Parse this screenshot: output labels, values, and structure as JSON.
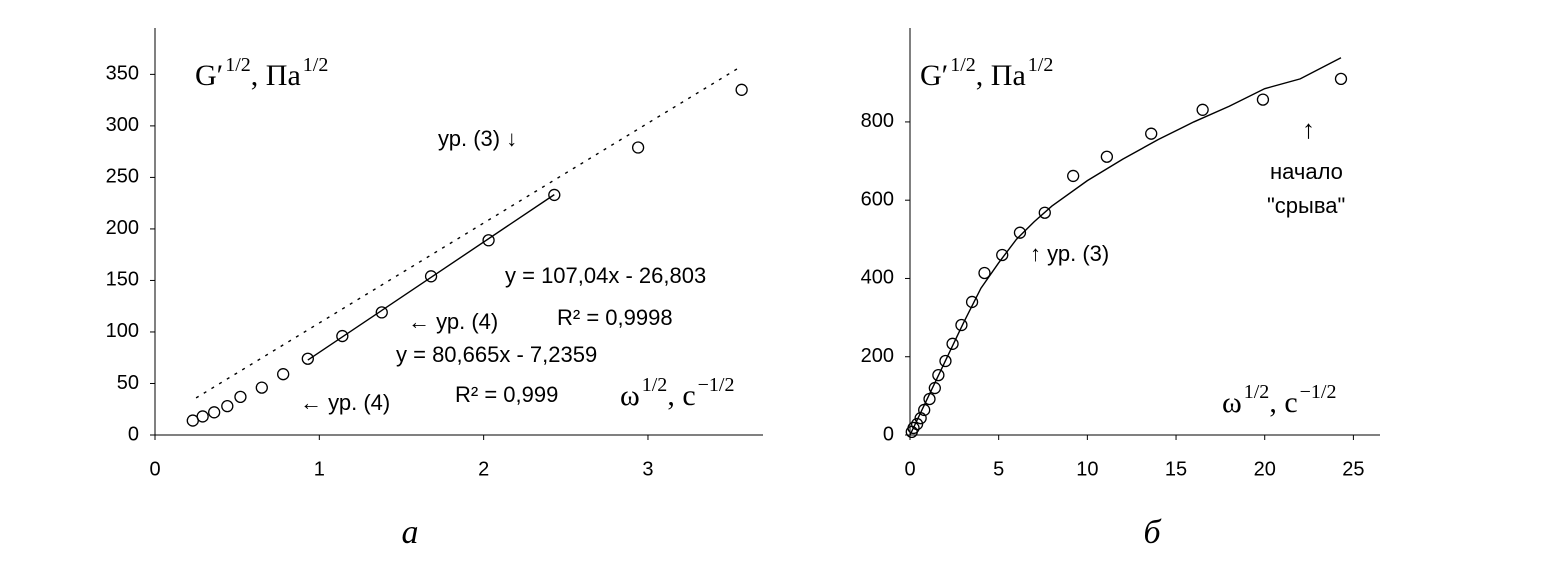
{
  "chart_data": [
    {
      "type": "scatter",
      "panel": "а",
      "y_label": [
        "G′",
        "1/2",
        ", Па",
        "1/2"
      ],
      "x_label": [
        "ω",
        "1/2",
        ", с",
        "−1/2"
      ],
      "xlim": [
        0,
        3.7
      ],
      "xticks": [
        0,
        1,
        2,
        3
      ],
      "ylim": [
        0,
        395
      ],
      "yticks": [
        0,
        50,
        100,
        150,
        200,
        250,
        300,
        350
      ],
      "series": [
        {
          "style": "markers",
          "color": "#000000",
          "x": [
            0.23,
            0.29,
            0.36,
            0.44,
            0.52,
            0.65,
            0.78,
            0.93,
            1.14,
            1.38,
            1.68,
            2.03,
            2.43,
            2.94,
            3.57
          ],
          "values": [
            14,
            18,
            22,
            28,
            37,
            46,
            59,
            74,
            96,
            119,
            154,
            189,
            233,
            279,
            335
          ]
        },
        {
          "style": "dotted",
          "color": "#000000",
          "x": [
            0.25,
            3.56
          ],
          "values": [
            36,
            357
          ]
        },
        {
          "style": "solid",
          "color": "#000000",
          "x": [
            0.93,
            2.43
          ],
          "values": [
            72.7,
            233.3
          ]
        }
      ],
      "annotations": [
        "ур. (3) ↓",
        "y = 107,04x - 26,803",
        "← ур. (4)",
        "R² = 0,9998",
        "y = 80,665x - 7,2359",
        "← ур. (4)",
        "R² = 0,999"
      ]
    },
    {
      "type": "scatter",
      "panel": "б",
      "y_label": [
        "G′",
        "1/2",
        ", Па",
        "1/2"
      ],
      "x_label": [
        "ω",
        "1/2",
        ", с",
        "−1/2"
      ],
      "xlim": [
        0,
        26.5
      ],
      "xticks": [
        0,
        5,
        10,
        15,
        20,
        25
      ],
      "ylim": [
        0,
        1040
      ],
      "yticks": [
        0,
        200,
        400,
        600,
        800
      ],
      "series": [
        {
          "style": "markers",
          "color": "#000000",
          "x": [
            0.1,
            0.2,
            0.4,
            0.6,
            0.8,
            1.1,
            1.4,
            1.6,
            2.0,
            2.4,
            2.9,
            3.5,
            4.2,
            5.2,
            6.2,
            7.6,
            9.2,
            11.1,
            13.6,
            16.5,
            19.9,
            24.3
          ],
          "values": [
            8,
            18,
            28,
            43,
            64,
            92,
            120,
            153,
            189,
            233,
            281,
            340,
            414,
            460,
            517,
            568,
            662,
            711,
            770,
            831,
            857,
            910
          ]
        },
        {
          "style": "solid",
          "color": "#000000",
          "x": [
            0,
            1,
            2,
            3,
            4,
            5,
            6,
            7,
            8,
            10,
            12,
            14,
            16,
            18,
            20,
            22,
            24.3
          ],
          "values": [
            0,
            95,
            190,
            285,
            375,
            440,
            500,
            545,
            585,
            650,
            705,
            755,
            800,
            840,
            885,
            910,
            964
          ]
        }
      ],
      "annotations": [
        "↑ ур. (3)",
        "↑",
        "начало",
        "\"срыва\""
      ]
    }
  ]
}
